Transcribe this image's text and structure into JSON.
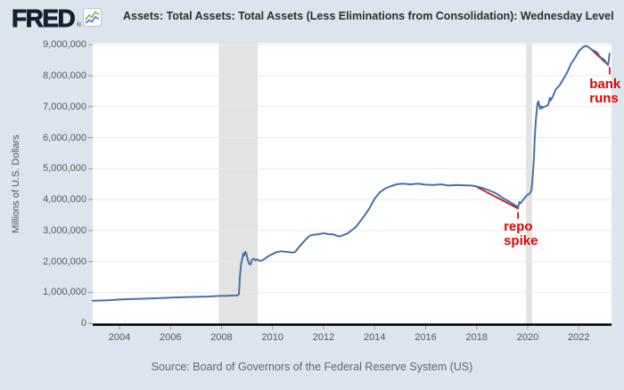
{
  "header": {
    "logo_text": "FRED",
    "registered_mark": "®",
    "legend_label": "Assets: Total Assets: Total Assets (Less Eliminations from Consolidation): Wednesday Level"
  },
  "footer": {
    "source": "Source: Board of Governors of the Federal Reserve System (US)"
  },
  "colors": {
    "series_blue": "#4572a7",
    "annotation_red": "#e60000",
    "trend_red": "#cc0000",
    "recession_gray": "#e3e3e3",
    "background": "#dce4ee",
    "gridline": "#e9e9e9",
    "axis_black": "#000000",
    "icon_green": "#7ab648",
    "icon_blue": "#4a76b8"
  },
  "chart_data": {
    "type": "line",
    "title": "Assets: Total Assets: Total Assets (Less Eliminations from Consolidation): Wednesday Level",
    "xlabel": "",
    "ylabel": "Millions of U.S. Dollars",
    "legend_position": "top",
    "grid": true,
    "xlim": [
      2002.95,
      2023.28
    ],
    "ylim": [
      0,
      9050000
    ],
    "x_ticks": [
      2004,
      2006,
      2008,
      2010,
      2012,
      2014,
      2016,
      2018,
      2020,
      2022
    ],
    "x_tick_labels": [
      "2004",
      "2006",
      "2008",
      "2010",
      "2012",
      "2014",
      "2016",
      "2018",
      "2020",
      "2022"
    ],
    "y_tick_values": [
      0,
      1000000,
      2000000,
      3000000,
      4000000,
      5000000,
      6000000,
      7000000,
      8000000,
      9000000
    ],
    "y_tick_labels": [
      "0",
      "1,000,000",
      "2,000,000",
      "3,000,000",
      "4,000,000",
      "5,000,000",
      "6,000,000",
      "7,000,000",
      "8,000,000",
      "9,000,000"
    ],
    "recessions": [
      [
        2007.89,
        2009.42
      ],
      [
        2019.93,
        2020.17
      ]
    ],
    "series": [
      {
        "name": "Assets: Total Assets: Total Assets (Less Eliminations from Consolidation): Wednesday Level",
        "units": "Millions of U.S. Dollars",
        "points": [
          [
            2002.95,
            730000
          ],
          [
            2003.3,
            740000
          ],
          [
            2003.7,
            752000
          ],
          [
            2004.0,
            770000
          ],
          [
            2004.5,
            785000
          ],
          [
            2005.0,
            800000
          ],
          [
            2005.5,
            815000
          ],
          [
            2006.0,
            830000
          ],
          [
            2006.5,
            845000
          ],
          [
            2007.0,
            858000
          ],
          [
            2007.5,
            868000
          ],
          [
            2007.9,
            885000
          ],
          [
            2008.2,
            890000
          ],
          [
            2008.45,
            900000
          ],
          [
            2008.62,
            905000
          ],
          [
            2008.68,
            940000
          ],
          [
            2008.72,
            1480000
          ],
          [
            2008.76,
            1900000
          ],
          [
            2008.81,
            2080000
          ],
          [
            2008.86,
            2260000
          ],
          [
            2008.89,
            2190000
          ],
          [
            2008.93,
            2310000
          ],
          [
            2008.97,
            2260000
          ],
          [
            2009.03,
            2050000
          ],
          [
            2009.08,
            1930000
          ],
          [
            2009.14,
            1900000
          ],
          [
            2009.19,
            2060000
          ],
          [
            2009.27,
            2090000
          ],
          [
            2009.33,
            2030000
          ],
          [
            2009.4,
            2070000
          ],
          [
            2009.48,
            2020000
          ],
          [
            2009.58,
            2030000
          ],
          [
            2009.68,
            2080000
          ],
          [
            2009.78,
            2140000
          ],
          [
            2009.88,
            2190000
          ],
          [
            2010.0,
            2240000
          ],
          [
            2010.15,
            2300000
          ],
          [
            2010.35,
            2330000
          ],
          [
            2010.55,
            2310000
          ],
          [
            2010.75,
            2290000
          ],
          [
            2010.88,
            2300000
          ],
          [
            2011.0,
            2430000
          ],
          [
            2011.15,
            2570000
          ],
          [
            2011.3,
            2710000
          ],
          [
            2011.45,
            2830000
          ],
          [
            2011.6,
            2860000
          ],
          [
            2011.8,
            2880000
          ],
          [
            2012.0,
            2910000
          ],
          [
            2012.2,
            2880000
          ],
          [
            2012.4,
            2870000
          ],
          [
            2012.55,
            2820000
          ],
          [
            2012.65,
            2810000
          ],
          [
            2012.8,
            2860000
          ],
          [
            2012.95,
            2910000
          ],
          [
            2013.1,
            3010000
          ],
          [
            2013.25,
            3100000
          ],
          [
            2013.4,
            3260000
          ],
          [
            2013.6,
            3480000
          ],
          [
            2013.8,
            3720000
          ],
          [
            2014.0,
            4030000
          ],
          [
            2014.2,
            4230000
          ],
          [
            2014.4,
            4350000
          ],
          [
            2014.6,
            4420000
          ],
          [
            2014.85,
            4490000
          ],
          [
            2015.1,
            4510000
          ],
          [
            2015.4,
            4490000
          ],
          [
            2015.7,
            4510000
          ],
          [
            2016.0,
            4480000
          ],
          [
            2016.3,
            4470000
          ],
          [
            2016.6,
            4490000
          ],
          [
            2016.9,
            4450000
          ],
          [
            2017.2,
            4470000
          ],
          [
            2017.5,
            4460000
          ],
          [
            2017.8,
            4450000
          ],
          [
            2018.0,
            4420000
          ],
          [
            2018.25,
            4370000
          ],
          [
            2018.5,
            4290000
          ],
          [
            2018.75,
            4200000
          ],
          [
            2019.0,
            4060000
          ],
          [
            2019.2,
            3970000
          ],
          [
            2019.4,
            3870000
          ],
          [
            2019.55,
            3790000
          ],
          [
            2019.63,
            3760000
          ],
          [
            2019.67,
            3920000
          ],
          [
            2019.72,
            3880000
          ],
          [
            2019.8,
            3970000
          ],
          [
            2019.9,
            4070000
          ],
          [
            2019.98,
            4150000
          ],
          [
            2020.05,
            4170000
          ],
          [
            2020.1,
            4220000
          ],
          [
            2020.15,
            4310000
          ],
          [
            2020.19,
            4670000
          ],
          [
            2020.24,
            5300000
          ],
          [
            2020.28,
            6080000
          ],
          [
            2020.33,
            6660000
          ],
          [
            2020.38,
            7100000
          ],
          [
            2020.42,
            7170000
          ],
          [
            2020.46,
            7010000
          ],
          [
            2020.49,
            6930000
          ],
          [
            2020.53,
            7010000
          ],
          [
            2020.57,
            6950000
          ],
          [
            2020.62,
            6990000
          ],
          [
            2020.7,
            7010000
          ],
          [
            2020.8,
            7060000
          ],
          [
            2020.87,
            7280000
          ],
          [
            2020.9,
            7200000
          ],
          [
            2021.0,
            7360000
          ],
          [
            2021.1,
            7560000
          ],
          [
            2021.25,
            7690000
          ],
          [
            2021.4,
            7900000
          ],
          [
            2021.55,
            8110000
          ],
          [
            2021.7,
            8390000
          ],
          [
            2021.85,
            8570000
          ],
          [
            2022.0,
            8790000
          ],
          [
            2022.1,
            8870000
          ],
          [
            2022.2,
            8940000
          ],
          [
            2022.3,
            8960000
          ],
          [
            2022.42,
            8900000
          ],
          [
            2022.55,
            8820000
          ],
          [
            2022.7,
            8760000
          ],
          [
            2022.85,
            8590000
          ],
          [
            2023.0,
            8510000
          ],
          [
            2023.08,
            8420000
          ],
          [
            2023.15,
            8340000
          ],
          [
            2023.21,
            8710000
          ]
        ]
      }
    ],
    "trend_lines": [
      {
        "from": [
          2017.9,
          4450000
        ],
        "to": [
          2019.64,
          3700000
        ]
      },
      {
        "from": [
          2022.42,
          8900000
        ],
        "to": [
          2023.17,
          8330000
        ]
      }
    ],
    "annotations": [
      {
        "label_lines": [
          "repo",
          "spike"
        ],
        "anchor_year": 2019.06,
        "anchor_value": 3340000,
        "tick": {
          "year": 2019.62,
          "v_top": 3590000,
          "v_bot": 3380000
        }
      },
      {
        "label_lines": [
          "bank",
          "runs"
        ],
        "anchor_year": 2022.42,
        "anchor_value": 7930000,
        "tick": {
          "year": 2023.21,
          "v_top": 8280000,
          "v_bot": 8040000
        }
      }
    ]
  }
}
